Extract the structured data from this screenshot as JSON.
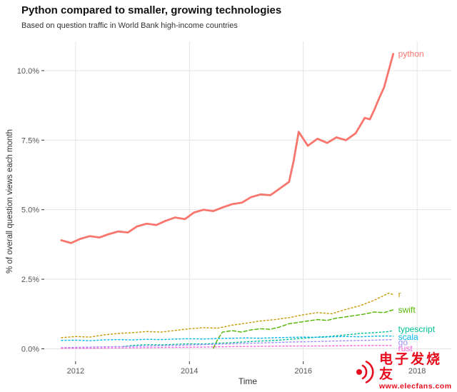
{
  "chart_data": {
    "type": "line",
    "title": "Python compared to smaller, growing technologies",
    "subtitle": "Based on question traffic in World Bank high-income countries",
    "xlabel": "Time",
    "ylabel": "% of overall question views each month",
    "xlim": [
      2011.45,
      2018.6
    ],
    "ylim": [
      -0.45,
      11.05
    ],
    "x_tick_values": [
      2012,
      2014,
      2016,
      2018
    ],
    "x_tick_labels": [
      "2012",
      "2014",
      "2016",
      "2018"
    ],
    "y_tick_values": [
      0,
      2.5,
      5,
      7.5,
      10
    ],
    "y_tick_labels": [
      "0.0%",
      "2.5%",
      "5.0%",
      "7.5%",
      "10.0%"
    ],
    "grid": true,
    "grid_color": "#e4e4e4",
    "tick_color": "#333333",
    "legend": "labels at right end of each line",
    "series": [
      {
        "name": "python",
        "color": "#F8766D",
        "width": 2.8,
        "dash": "",
        "label_dy": 0,
        "x": [
          2011.75,
          2011.92,
          2012.08,
          2012.25,
          2012.42,
          2012.58,
          2012.75,
          2012.92,
          2013.08,
          2013.25,
          2013.42,
          2013.58,
          2013.75,
          2013.92,
          2014.08,
          2014.25,
          2014.42,
          2014.58,
          2014.75,
          2014.92,
          2015.08,
          2015.25,
          2015.42,
          2015.58,
          2015.75,
          2015.83,
          2015.92,
          2016.08,
          2016.25,
          2016.42,
          2016.58,
          2016.75,
          2016.92,
          2017.08,
          2017.17,
          2017.25,
          2017.33,
          2017.42,
          2017.5,
          2017.58
        ],
        "y": [
          3.9,
          3.8,
          3.95,
          4.05,
          4.0,
          4.12,
          4.22,
          4.18,
          4.4,
          4.5,
          4.45,
          4.6,
          4.72,
          4.66,
          4.9,
          5.0,
          4.95,
          5.08,
          5.2,
          5.25,
          5.45,
          5.55,
          5.52,
          5.75,
          6.0,
          6.75,
          7.8,
          7.3,
          7.55,
          7.4,
          7.6,
          7.5,
          7.75,
          8.3,
          8.25,
          8.6,
          9.0,
          9.4,
          10.0,
          10.6
        ]
      },
      {
        "name": "r",
        "color": "#C49A00",
        "width": 1.4,
        "dash": "2,3",
        "label_dy": 0,
        "x": [
          2011.75,
          2012.0,
          2012.25,
          2012.5,
          2012.75,
          2013.0,
          2013.25,
          2013.5,
          2013.75,
          2014.0,
          2014.25,
          2014.5,
          2014.75,
          2015.0,
          2015.25,
          2015.5,
          2015.75,
          2016.0,
          2016.25,
          2016.5,
          2016.75,
          2017.0,
          2017.25,
          2017.5,
          2017.58
        ],
        "y": [
          0.4,
          0.44,
          0.42,
          0.5,
          0.55,
          0.58,
          0.62,
          0.6,
          0.66,
          0.72,
          0.76,
          0.74,
          0.85,
          0.92,
          1.0,
          1.05,
          1.12,
          1.22,
          1.3,
          1.26,
          1.42,
          1.55,
          1.75,
          2.0,
          1.95
        ]
      },
      {
        "name": "swift",
        "color": "#53B400",
        "width": 1.4,
        "dash": "5,3",
        "label_dy": 0,
        "x": [
          2014.42,
          2014.5,
          2014.58,
          2014.75,
          2014.92,
          2015.08,
          2015.25,
          2015.42,
          2015.58,
          2015.75,
          2015.92,
          2016.08,
          2016.25,
          2016.42,
          2016.58,
          2016.75,
          2016.92,
          2017.08,
          2017.25,
          2017.42,
          2017.58
        ],
        "y": [
          0.02,
          0.35,
          0.6,
          0.65,
          0.6,
          0.68,
          0.72,
          0.7,
          0.78,
          0.9,
          0.95,
          1.0,
          1.05,
          1.02,
          1.1,
          1.15,
          1.2,
          1.25,
          1.32,
          1.3,
          1.4
        ]
      },
      {
        "name": "typescript",
        "color": "#00C094",
        "width": 1.4,
        "dash": "2,3",
        "label_dy": -2,
        "x": [
          2012.83,
          2013.0,
          2013.25,
          2013.5,
          2013.75,
          2014.0,
          2014.25,
          2014.5,
          2014.75,
          2015.0,
          2015.25,
          2015.5,
          2015.75,
          2016.0,
          2016.25,
          2016.5,
          2016.75,
          2017.0,
          2017.25,
          2017.5,
          2017.58
        ],
        "y": [
          0.08,
          0.12,
          0.15,
          0.14,
          0.16,
          0.18,
          0.17,
          0.2,
          0.22,
          0.25,
          0.28,
          0.3,
          0.34,
          0.38,
          0.42,
          0.45,
          0.5,
          0.55,
          0.58,
          0.62,
          0.65
        ]
      },
      {
        "name": "scala",
        "color": "#00B6EB",
        "width": 1.4,
        "dash": "2,3",
        "label_dy": 1,
        "x": [
          2011.75,
          2012.0,
          2012.25,
          2012.5,
          2012.75,
          2013.0,
          2013.25,
          2013.5,
          2013.75,
          2014.0,
          2014.25,
          2014.5,
          2014.75,
          2015.0,
          2015.25,
          2015.5,
          2015.75,
          2016.0,
          2016.25,
          2016.5,
          2016.75,
          2017.0,
          2017.25,
          2017.5,
          2017.58
        ],
        "y": [
          0.3,
          0.31,
          0.29,
          0.32,
          0.33,
          0.32,
          0.34,
          0.33,
          0.35,
          0.36,
          0.35,
          0.37,
          0.38,
          0.39,
          0.38,
          0.4,
          0.41,
          0.42,
          0.41,
          0.43,
          0.44,
          0.43,
          0.45,
          0.46,
          0.45
        ]
      },
      {
        "name": "go",
        "color": "#A58AFF",
        "width": 1.4,
        "dash": "2,3",
        "label_dy": 4,
        "x": [
          2011.75,
          2012.25,
          2012.75,
          2013.25,
          2013.75,
          2014.25,
          2014.75,
          2015.25,
          2015.75,
          2016.25,
          2016.75,
          2017.25,
          2017.58
        ],
        "y": [
          0.04,
          0.06,
          0.08,
          0.1,
          0.12,
          0.15,
          0.18,
          0.21,
          0.24,
          0.26,
          0.29,
          0.31,
          0.33
        ]
      },
      {
        "name": "rust",
        "color": "#FB61D7",
        "width": 1.4,
        "dash": "2,3",
        "label_dy": 4,
        "x": [
          2011.75,
          2012.25,
          2012.75,
          2013.25,
          2013.75,
          2014.25,
          2014.75,
          2015.25,
          2015.75,
          2016.25,
          2016.75,
          2017.25,
          2017.58
        ],
        "y": [
          0.02,
          0.02,
          0.03,
          0.04,
          0.05,
          0.06,
          0.08,
          0.09,
          0.1,
          0.1,
          0.11,
          0.12,
          0.12
        ]
      }
    ]
  },
  "watermark": {
    "brand": "电子发烧友",
    "url": "www.elecfans.com",
    "color": "#e60012"
  }
}
